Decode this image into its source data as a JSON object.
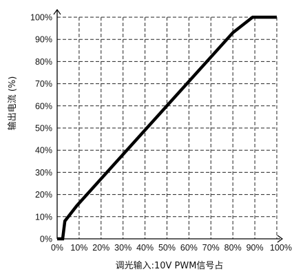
{
  "chart_data": {
    "type": "line",
    "xlabel": "调光输入:10V PWM信号占",
    "ylabel": "输出电流 (%)",
    "x_ticks": [
      "0%",
      "10%",
      "20%",
      "30%",
      "40%",
      "50%",
      "60%",
      "70%",
      "80%",
      "90%",
      "100%"
    ],
    "y_ticks": [
      "0%",
      "10%",
      "20%",
      "30%",
      "40%",
      "50%",
      "60%",
      "70%",
      "80%",
      "90%",
      "100%"
    ],
    "xlim": [
      0,
      100
    ],
    "ylim": [
      0,
      100
    ],
    "grid": true,
    "series": [
      {
        "x": [
          0,
          2.5,
          3.5,
          9,
          80,
          89,
          90,
          100
        ],
        "y": [
          0,
          0,
          8,
          15,
          93,
          100,
          100,
          100
        ],
        "color": "#000000"
      }
    ]
  }
}
